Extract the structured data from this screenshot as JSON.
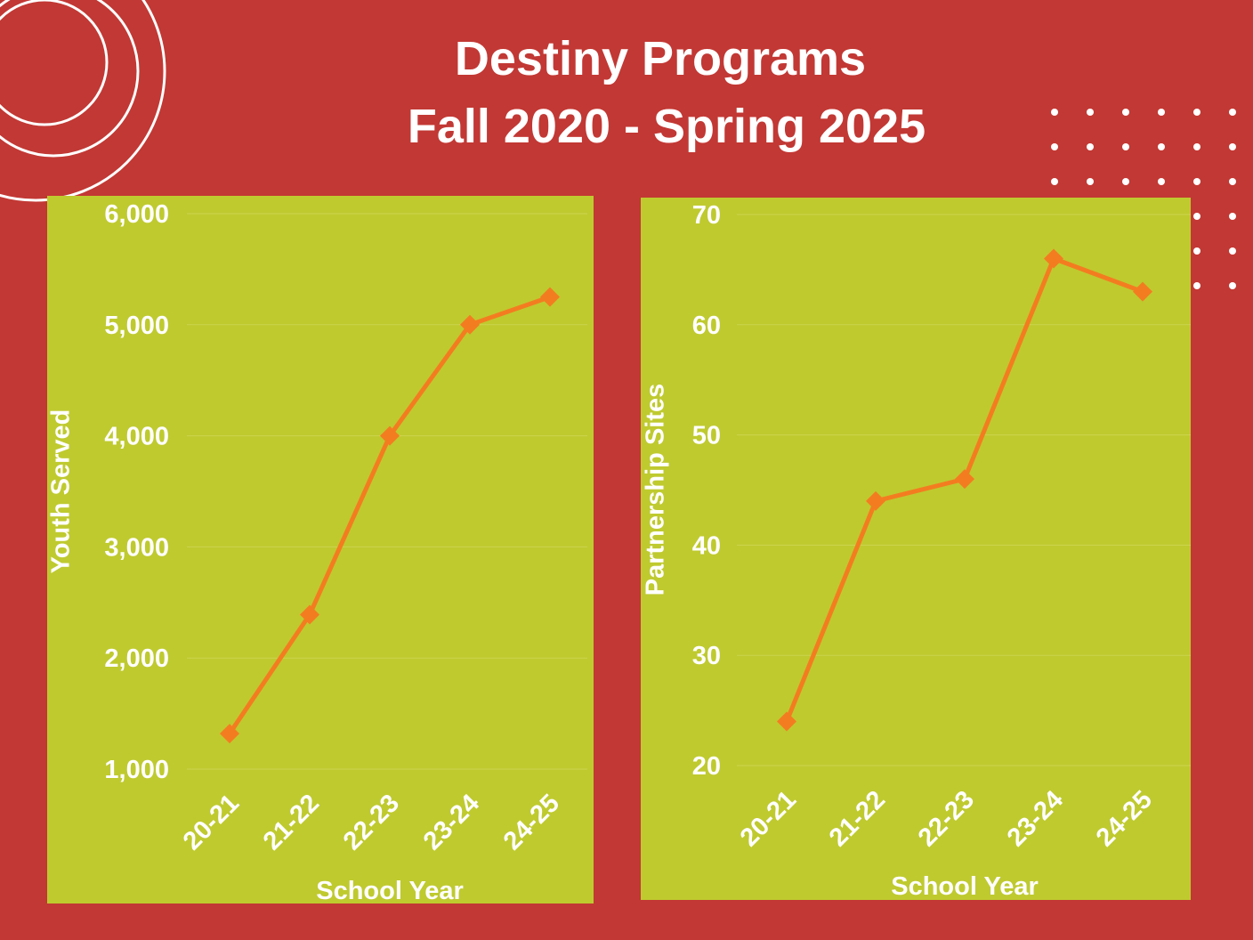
{
  "header": {
    "title_line1": "Destiny Programs",
    "title_line2": "Fall 2020 - Spring 2025"
  },
  "colors": {
    "background": "#c23834",
    "panel": "#bfca2f",
    "line": "#f47c20",
    "text": "#ffffff"
  },
  "chart_data": [
    {
      "type": "line",
      "title": "",
      "xlabel": "School Year",
      "ylabel": "Youth Served",
      "categories": [
        "20-21",
        "21-22",
        "22-23",
        "23-24",
        "24-25"
      ],
      "values": [
        1320,
        2390,
        4000,
        5000,
        5250
      ],
      "ylim": [
        1000,
        6000
      ],
      "yticks": [
        1000,
        2000,
        3000,
        4000,
        5000,
        6000
      ],
      "ytick_labels": [
        "1,000",
        "2,000",
        "3,000",
        "4,000",
        "5,000",
        "6,000"
      ],
      "grid": true,
      "marker": "diamond"
    },
    {
      "type": "line",
      "title": "",
      "xlabel": "School Year",
      "ylabel": "Partnership Sites",
      "categories": [
        "20-21",
        "21-22",
        "22-23",
        "23-24",
        "24-25"
      ],
      "values": [
        24,
        44,
        46,
        66,
        63
      ],
      "ylim": [
        20,
        70
      ],
      "yticks": [
        20,
        30,
        40,
        50,
        60,
        70
      ],
      "ytick_labels": [
        "20",
        "30",
        "40",
        "50",
        "60",
        "70"
      ],
      "grid": true,
      "marker": "diamond"
    }
  ]
}
